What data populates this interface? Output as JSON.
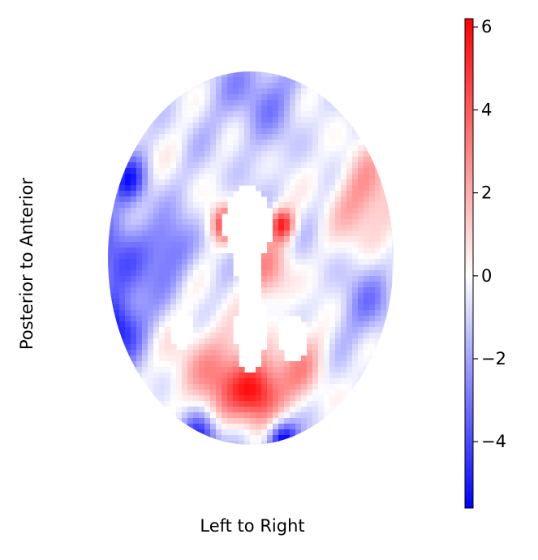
{
  "chart_data": {
    "type": "heatmap",
    "title": "",
    "xlabel": "Left to Right",
    "ylabel": "Posterior to Anterior",
    "colormap": "bwr",
    "colors": {
      "negative": "#0000ff",
      "zero": "#ffffff",
      "positive": "#ff0000"
    },
    "colorbar": {
      "vmin": -5.6,
      "vmax": 6.2,
      "ticks": [
        6,
        4,
        2,
        0,
        -2,
        -4
      ],
      "tick_labels": [
        "6",
        "4",
        "2",
        "0",
        "−2",
        "−4"
      ]
    },
    "axes_visible": false,
    "blobs": [
      {
        "name": "right-frontal",
        "x": 0.82,
        "y": 0.32,
        "value": 3.0,
        "spread": 0.18
      },
      {
        "name": "left-caudate",
        "x": -0.18,
        "y": 0.18,
        "value": 5.0,
        "spread": 0.07
      },
      {
        "name": "right-caudate",
        "x": 0.22,
        "y": 0.18,
        "value": 5.5,
        "spread": 0.06
      },
      {
        "name": "right-putamen",
        "x": 0.12,
        "y": -0.08,
        "value": 3.0,
        "spread": 0.12
      },
      {
        "name": "posterior-cingulate",
        "x": 0.05,
        "y": -0.72,
        "value": 6.0,
        "spread": 0.12
      },
      {
        "name": "left-parietal",
        "x": -0.25,
        "y": -0.62,
        "value": 3.5,
        "spread": 0.18
      },
      {
        "name": "right-parietal",
        "x": 0.35,
        "y": -0.58,
        "value": 2.5,
        "spread": 0.14
      },
      {
        "name": "left-temporal",
        "x": -0.92,
        "y": -0.02,
        "value": -3.0,
        "spread": 0.2
      },
      {
        "name": "left-occipital-lateral",
        "x": -0.95,
        "y": -0.38,
        "value": -4.2,
        "spread": 0.12
      },
      {
        "name": "left-frontal-lateral",
        "x": -0.85,
        "y": 0.42,
        "value": -3.5,
        "spread": 0.09
      },
      {
        "name": "left-occipital-pole",
        "x": -0.35,
        "y": -0.96,
        "value": -4.8,
        "spread": 0.09
      },
      {
        "name": "right-occipital-pole",
        "x": 0.22,
        "y": -0.98,
        "value": -5.5,
        "spread": 0.08
      },
      {
        "name": "frontal-pole",
        "x": 0.05,
        "y": 0.88,
        "value": -2.0,
        "spread": 0.18
      },
      {
        "name": "right-temporal",
        "x": 0.85,
        "y": -0.25,
        "value": -1.8,
        "spread": 0.15
      },
      {
        "name": "left-insula",
        "x": -0.55,
        "y": 0.05,
        "value": -2.0,
        "spread": 0.12
      }
    ],
    "masked_regions": [
      {
        "name": "lateral-ventricles-anterior",
        "x": -0.02,
        "y": 0.18,
        "rx": 0.17,
        "ry": 0.21
      },
      {
        "name": "ventricle-body",
        "x": -0.02,
        "y": -0.02,
        "rx": 0.09,
        "ry": 0.25
      },
      {
        "name": "septum-third-ventricle",
        "x": 0.0,
        "y": -0.38,
        "rx": 0.11,
        "ry": 0.24
      },
      {
        "name": "left-occipital-horn",
        "x": -0.48,
        "y": -0.38,
        "rx": 0.09,
        "ry": 0.11
      },
      {
        "name": "right-occipital-horn",
        "x": 0.3,
        "y": -0.43,
        "rx": 0.1,
        "ry": 0.13
      }
    ]
  }
}
